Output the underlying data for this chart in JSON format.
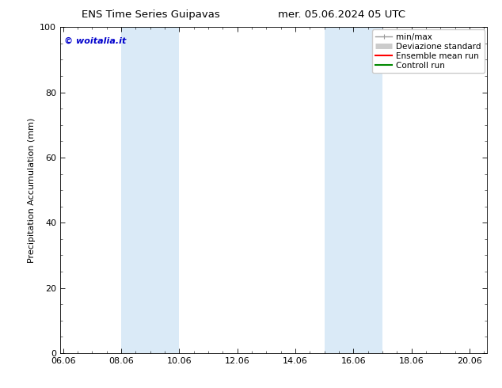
{
  "title_left": "ENS Time Series Guipavas",
  "title_right": "mer. 05.06.2024 05 UTC",
  "ylabel": "Precipitation Accumulation (mm)",
  "ylim": [
    0,
    100
  ],
  "xtick_labels": [
    "06.06",
    "08.06",
    "10.06",
    "12.06",
    "14.06",
    "16.06",
    "18.06",
    "20.06"
  ],
  "xtick_positions": [
    0,
    2,
    4,
    6,
    8,
    10,
    12,
    14
  ],
  "xlim": [
    -0.1,
    14.6
  ],
  "ytick_positions": [
    0,
    20,
    40,
    60,
    80,
    100
  ],
  "ytick_labels": [
    "0",
    "20",
    "40",
    "60",
    "80",
    "100"
  ],
  "shaded_bands": [
    {
      "xmin": 2.0,
      "xmax": 4.0
    },
    {
      "xmin": 9.0,
      "xmax": 11.0
    }
  ],
  "band_color": "#daeaf7",
  "watermark_text": "© woitalia.it",
  "watermark_color": "#0000cc",
  "legend_entries": [
    {
      "label": "min/max",
      "color": "#999999",
      "lw": 1.0
    },
    {
      "label": "Deviazione standard",
      "color": "#cccccc",
      "lw": 5
    },
    {
      "label": "Ensemble mean run",
      "color": "#ff0000",
      "lw": 1.5
    },
    {
      "label": "Controll run",
      "color": "#008800",
      "lw": 1.5
    }
  ],
  "bg_color": "#ffffff",
  "font_size": 8,
  "title_fontsize": 9.5
}
